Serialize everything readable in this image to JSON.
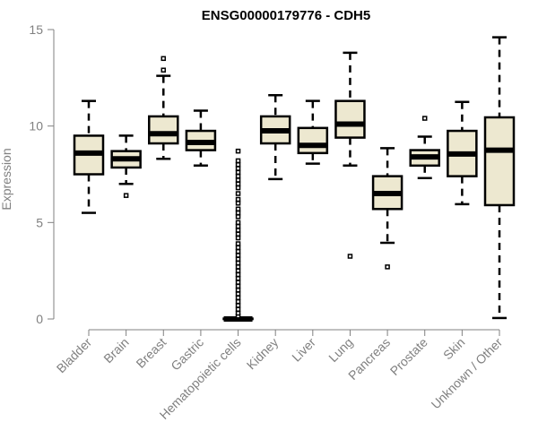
{
  "chart_data": {
    "type": "boxplot",
    "title": "ENSG00000179776 - CDH5",
    "xlabel": "",
    "ylabel": "Expression",
    "ylim": [
      0,
      15
    ],
    "yticks": [
      0,
      5,
      10,
      15
    ],
    "grid": false,
    "legend": "none",
    "colors": {
      "box_fill": "#EDE8D0",
      "box_stroke": "#000000",
      "axis": "#808080",
      "tick_text": "#808080",
      "title": "#000000"
    },
    "categories": [
      "Bladder",
      "Brain",
      "Breast",
      "Gastric",
      "Hematopoietic cells",
      "Kidney",
      "Liver",
      "Lung",
      "Pancreas",
      "Prostate",
      "Skin",
      "Unknown / Other"
    ],
    "series": [
      {
        "name": "Bladder",
        "whisker_low": 5.5,
        "q1": 7.5,
        "median": 8.6,
        "q3": 9.5,
        "whisker_high": 11.3,
        "outliers": []
      },
      {
        "name": "Brain",
        "whisker_low": 7.0,
        "q1": 7.85,
        "median": 8.3,
        "q3": 8.7,
        "whisker_high": 9.5,
        "outliers": [
          6.4
        ]
      },
      {
        "name": "Breast",
        "whisker_low": 8.3,
        "q1": 9.1,
        "median": 9.6,
        "q3": 10.5,
        "whisker_high": 12.6,
        "outliers": [
          12.9,
          13.5
        ]
      },
      {
        "name": "Gastric",
        "whisker_low": 7.95,
        "q1": 8.75,
        "median": 9.15,
        "q3": 9.75,
        "whisker_high": 10.8,
        "outliers": []
      },
      {
        "name": "Hematopoietic cells",
        "whisker_low": 0.0,
        "q1": 0.0,
        "median": 0.0,
        "q3": 0.02,
        "whisker_high": 0.05,
        "outliers": [
          0.15,
          0.3,
          0.5,
          0.7,
          0.9,
          1.1,
          1.3,
          1.5,
          1.7,
          1.9,
          2.1,
          2.3,
          2.5,
          2.7,
          2.9,
          3.1,
          3.3,
          3.5,
          3.7,
          3.9,
          4.2,
          4.4,
          4.6,
          4.8,
          5.0,
          5.3,
          5.5,
          5.7,
          6.0,
          6.2,
          6.5,
          6.8,
          7.0,
          7.2,
          7.4,
          7.6,
          7.8,
          8.0,
          8.2,
          8.7
        ]
      },
      {
        "name": "Kidney",
        "whisker_low": 7.25,
        "q1": 9.1,
        "median": 9.75,
        "q3": 10.5,
        "whisker_high": 11.6,
        "outliers": []
      },
      {
        "name": "Liver",
        "whisker_low": 8.05,
        "q1": 8.6,
        "median": 9.0,
        "q3": 9.9,
        "whisker_high": 11.3,
        "outliers": []
      },
      {
        "name": "Lung",
        "whisker_low": 7.95,
        "q1": 9.4,
        "median": 10.1,
        "q3": 11.3,
        "whisker_high": 13.8,
        "outliers": [
          3.25
        ]
      },
      {
        "name": "Pancreas",
        "whisker_low": 3.95,
        "q1": 5.7,
        "median": 6.5,
        "q3": 7.4,
        "whisker_high": 8.85,
        "outliers": [
          2.7
        ]
      },
      {
        "name": "Prostate",
        "whisker_low": 7.3,
        "q1": 7.95,
        "median": 8.4,
        "q3": 8.75,
        "whisker_high": 9.45,
        "outliers": [
          10.4
        ]
      },
      {
        "name": "Skin",
        "whisker_low": 5.95,
        "q1": 7.4,
        "median": 8.55,
        "q3": 9.75,
        "whisker_high": 11.25,
        "outliers": []
      },
      {
        "name": "Unknown / Other",
        "whisker_low": 0.05,
        "q1": 5.9,
        "median": 8.75,
        "q3": 10.45,
        "whisker_high": 14.6,
        "outliers": []
      }
    ]
  }
}
